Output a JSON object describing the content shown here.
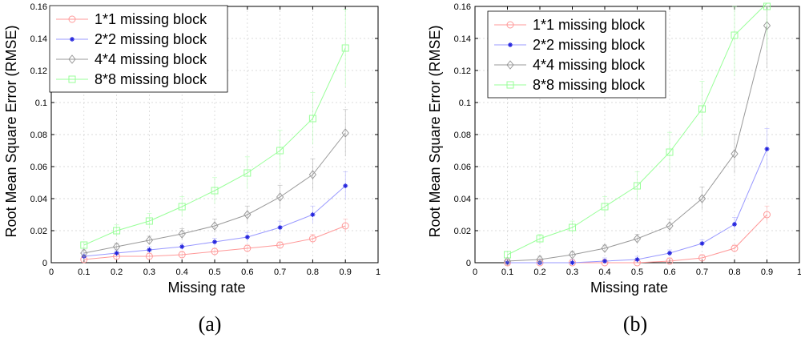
{
  "chart_data": [
    {
      "type": "line",
      "caption": "(a)",
      "xlabel": "Missing rate",
      "ylabel": "Root Mean Square Error (RMSE)",
      "xlim": [
        0,
        1
      ],
      "ylim": [
        0,
        0.16
      ],
      "xticks": [
        "0",
        "0.1",
        "0.2",
        "0.3",
        "0.4",
        "0.5",
        "0.6",
        "0.7",
        "0.8",
        "0.9",
        "1"
      ],
      "yticks": [
        "0",
        "0.02",
        "0.04",
        "0.06",
        "0.08",
        "0.1",
        "0.12",
        "0.14",
        "0.16"
      ],
      "grid": true,
      "legend": "top-left",
      "x": [
        0.1,
        0.2,
        0.3,
        0.4,
        0.5,
        0.6,
        0.7,
        0.8,
        0.9
      ],
      "series": [
        {
          "name": "1*1 missing block",
          "color": "#ff9999",
          "marker": "circle",
          "values": [
            0.002,
            0.004,
            0.004,
            0.005,
            0.007,
            0.009,
            0.011,
            0.015,
            0.023
          ]
        },
        {
          "name": "2*2 missing block",
          "color": "#9999ff",
          "marker": "star",
          "values": [
            0.004,
            0.006,
            0.008,
            0.01,
            0.013,
            0.016,
            0.022,
            0.03,
            0.048
          ]
        },
        {
          "name": "4*4 missing block",
          "color": "#999999",
          "marker": "diamond",
          "values": [
            0.006,
            0.01,
            0.014,
            0.018,
            0.023,
            0.03,
            0.041,
            0.055,
            0.081
          ]
        },
        {
          "name": "8*8 missing block",
          "color": "#99ff99",
          "marker": "square",
          "values": [
            0.011,
            0.02,
            0.026,
            0.035,
            0.045,
            0.056,
            0.07,
            0.09,
            0.134
          ]
        }
      ]
    },
    {
      "type": "line",
      "caption": "(b)",
      "xlabel": "Missing rate",
      "ylabel": "Root Mean Square Error (RMSE)",
      "xlim": [
        0,
        1
      ],
      "ylim": [
        0,
        0.16
      ],
      "xticks": [
        "0",
        "0.1",
        "0.2",
        "0.3",
        "0.4",
        "0.5",
        "0.6",
        "0.7",
        "0.8",
        "0.9",
        "1"
      ],
      "yticks": [
        "0",
        "0.02",
        "0.04",
        "0.06",
        "0.08",
        "0.1",
        "0.12",
        "0.14",
        "0.16"
      ],
      "grid": true,
      "legend": "top-left",
      "x": [
        0.1,
        0.2,
        0.3,
        0.4,
        0.5,
        0.6,
        0.7,
        0.8,
        0.9
      ],
      "series": [
        {
          "name": "1*1 missing block",
          "color": "#ff9999",
          "marker": "circle",
          "values": [
            0.0,
            0.0,
            0.0,
            0.0,
            0.0,
            0.001,
            0.003,
            0.009,
            0.03
          ]
        },
        {
          "name": "2*2 missing block",
          "color": "#9999ff",
          "marker": "star",
          "values": [
            0.0,
            0.0,
            0.0,
            0.001,
            0.002,
            0.006,
            0.012,
            0.024,
            0.071
          ]
        },
        {
          "name": "4*4 missing block",
          "color": "#999999",
          "marker": "diamond",
          "values": [
            0.001,
            0.002,
            0.005,
            0.009,
            0.015,
            0.023,
            0.04,
            0.068,
            0.148
          ]
        },
        {
          "name": "8*8 missing block",
          "color": "#99ff99",
          "marker": "square",
          "values": [
            0.005,
            0.015,
            0.022,
            0.035,
            0.048,
            0.069,
            0.096,
            0.142,
            0.162
          ]
        }
      ]
    }
  ]
}
